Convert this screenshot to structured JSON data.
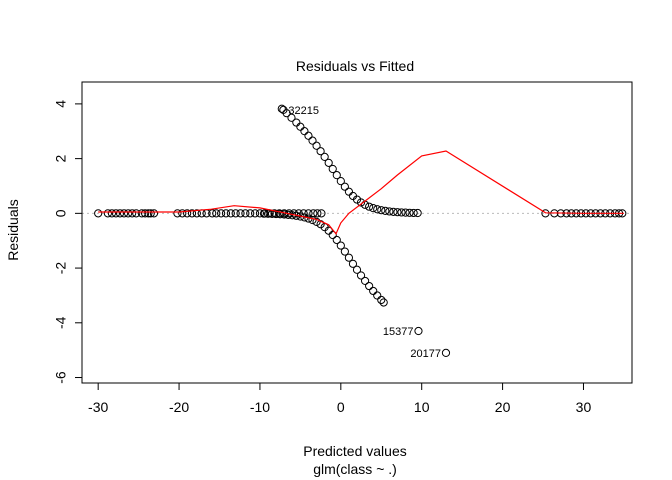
{
  "chart_data": {
    "type": "scatter",
    "title": "Residuals vs Fitted",
    "xlabel": "Predicted values",
    "xlabel2": "glm(class ~ .)",
    "ylabel": "Residuals",
    "xlim": [
      -32,
      36
    ],
    "ylim": [
      -6.2,
      4.8
    ],
    "xticks": [
      -30,
      -20,
      -10,
      0,
      10,
      20,
      30
    ],
    "yticks": [
      -6,
      -4,
      -2,
      0,
      2,
      4
    ],
    "reference_line": {
      "y": 0,
      "style": "dotted",
      "color": "#bbbbbb"
    },
    "point_color": "#000000",
    "smooth_color": "#ff0000",
    "zero_cluster_x": [
      -30,
      -28.8,
      -28.3,
      -27.8,
      -27.3,
      -26.8,
      -26.3,
      -25.8,
      -25.3,
      -24.6,
      -24.2,
      -23.8,
      -23.5,
      -23.1,
      -20.2,
      -19.6,
      -19,
      -18.4,
      -17.8,
      -17.2,
      -16.6,
      -15.9,
      -15.4,
      -14.8,
      -14.2,
      -13.6,
      -13,
      -12.4,
      -11.8,
      -11.2,
      -10.6,
      -10,
      -9.4,
      -8.8,
      -8.2,
      -7.6,
      -7,
      -6.4,
      -5.8,
      -5.2,
      -4.6,
      -4,
      -3.4,
      -2.9,
      -2.4,
      25.3,
      26.4,
      27.2,
      27.9,
      28.5,
      29.1,
      29.7,
      30.3,
      30.9,
      31.5,
      32.1,
      32.7,
      33.3,
      33.9,
      34.4,
      34.8
    ],
    "upper_branch_x": [
      -7.3,
      -6.7,
      -6.1,
      -5.5,
      -5,
      -4.5,
      -4,
      -3.5,
      -3,
      -2.5,
      -2,
      -1.5,
      -1,
      -0.5,
      0,
      0.5,
      1,
      1.5,
      2,
      2.5,
      3,
      3.5,
      4,
      4.5,
      5,
      5.5,
      6,
      6.5,
      7,
      7.5,
      8,
      8.5,
      9,
      9.5
    ],
    "lower_branch_x": [
      -9.5,
      -9,
      -8.5,
      -8,
      -7.5,
      -7,
      -6.5,
      -6,
      -5.5,
      -5,
      -4.5,
      -4,
      -3.5,
      -3,
      -2.5,
      -2,
      -1.5,
      -1,
      -0.5,
      0,
      0.5,
      1,
      1.5,
      2,
      2.5,
      3,
      3.5,
      4,
      4.5,
      5,
      5.3
    ],
    "labeled_points": [
      {
        "label": "32215",
        "x": -7.1,
        "y": 3.78,
        "side": "right"
      },
      {
        "label": "15377",
        "x": 9.6,
        "y": -4.3,
        "side": "left"
      },
      {
        "label": "20177",
        "x": 13,
        "y": -5.1,
        "side": "left"
      }
    ],
    "smooth_line": {
      "x": [
        -30,
        -25,
        -20,
        -16,
        -13.2,
        -10,
        -7,
        -5,
        -3,
        -1.5,
        -0.6,
        0,
        1,
        3,
        5,
        7,
        10,
        13,
        25.3,
        30,
        35
      ],
      "y": [
        0.05,
        0.05,
        0.05,
        0.15,
        0.28,
        0.2,
        0.02,
        -0.1,
        -0.22,
        -0.42,
        -0.75,
        -0.35,
        0,
        0.45,
        0.9,
        1.4,
        2.1,
        2.28,
        0.02,
        0,
        0
      ]
    }
  }
}
